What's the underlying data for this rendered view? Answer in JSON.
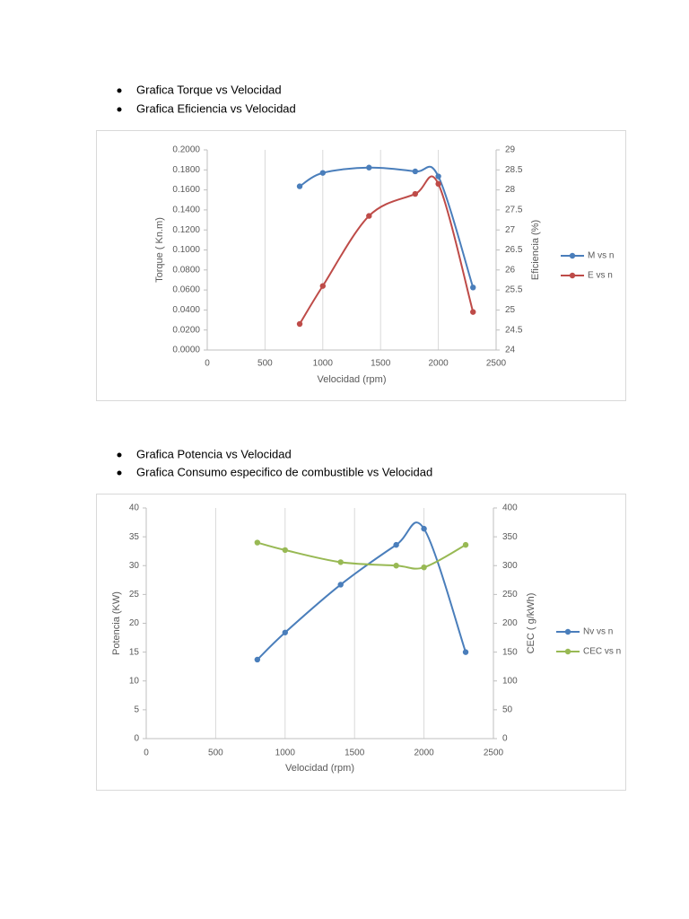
{
  "bullets": [
    [
      "Grafica Torque vs Velocidad",
      "Grafica Eficiencia vs Velocidad"
    ],
    [
      "Grafica Potencia vs Velocidad",
      "Grafica Consumo especifico de combustible vs Velocidad"
    ]
  ],
  "chart_data": [
    {
      "type": "line",
      "smooth": true,
      "grid": "x",
      "legend": "right",
      "xlabel": "Velocidad (rpm)",
      "ylabel": "Torque ( Kn.m)",
      "y2label": "Eficiencia (%)",
      "x": [
        800,
        1000,
        1400,
        1800,
        2000,
        2300
      ],
      "series": [
        {
          "name": "M vs n",
          "color": "#4a7ebb",
          "values": [
            0.1636,
            0.177,
            0.1823,
            0.1785,
            0.1735,
            0.0625
          ]
        },
        {
          "name": "E vs n",
          "color": "#be4b48",
          "axis": "y2",
          "values": [
            24.65,
            25.6,
            27.35,
            27.9,
            28.15,
            24.95
          ]
        }
      ],
      "xlim": [
        0,
        2500
      ],
      "xticks": [
        0,
        500,
        1000,
        1500,
        2000,
        2500
      ],
      "ylim": [
        0,
        0.2
      ],
      "yticks": [
        {
          "value": 0,
          "label": "0.0000"
        },
        {
          "value": 0.02,
          "label": "0.0200"
        },
        {
          "value": 0.04,
          "label": "0.0400"
        },
        {
          "value": 0.06,
          "label": "0.0600"
        },
        {
          "value": 0.08,
          "label": "0.0800"
        },
        {
          "value": 0.1,
          "label": "0.1000"
        },
        {
          "value": 0.12,
          "label": "0.1200"
        },
        {
          "value": 0.14,
          "label": "0.1400"
        },
        {
          "value": 0.16,
          "label": "0.1600"
        },
        {
          "value": 0.18,
          "label": "0.1800"
        },
        {
          "value": 0.2,
          "label": "0.2000"
        }
      ],
      "y2lim": [
        24,
        29
      ],
      "y2ticks": [
        24,
        24.5,
        25,
        25.5,
        26,
        26.5,
        27,
        27.5,
        28,
        28.5,
        29
      ]
    },
    {
      "type": "line",
      "smooth": true,
      "grid": "x",
      "legend": "right",
      "xlabel": "Velocidad (rpm)",
      "ylabel": "Potencia (KW)",
      "y2label": "CEC ( g/kWh)",
      "x": [
        800,
        1000,
        1400,
        1800,
        2000,
        2300
      ],
      "series": [
        {
          "name": "Nv vs n",
          "color": "#4a7ebb",
          "values": [
            13.7,
            18.4,
            26.7,
            33.6,
            36.4,
            15.0
          ]
        },
        {
          "name": "CEC vs n",
          "color": "#98b954",
          "axis": "y2",
          "values": [
            340,
            327,
            306,
            300,
            297,
            336
          ]
        }
      ],
      "xlim": [
        0,
        2500
      ],
      "xticks": [
        0,
        500,
        1000,
        1500,
        2000,
        2500
      ],
      "ylim": [
        0,
        40
      ],
      "yticks": [
        0,
        5,
        10,
        15,
        20,
        25,
        30,
        35,
        40
      ],
      "y2lim": [
        0,
        400
      ],
      "y2ticks": [
        0,
        50,
        100,
        150,
        200,
        250,
        300,
        350,
        400
      ]
    }
  ]
}
